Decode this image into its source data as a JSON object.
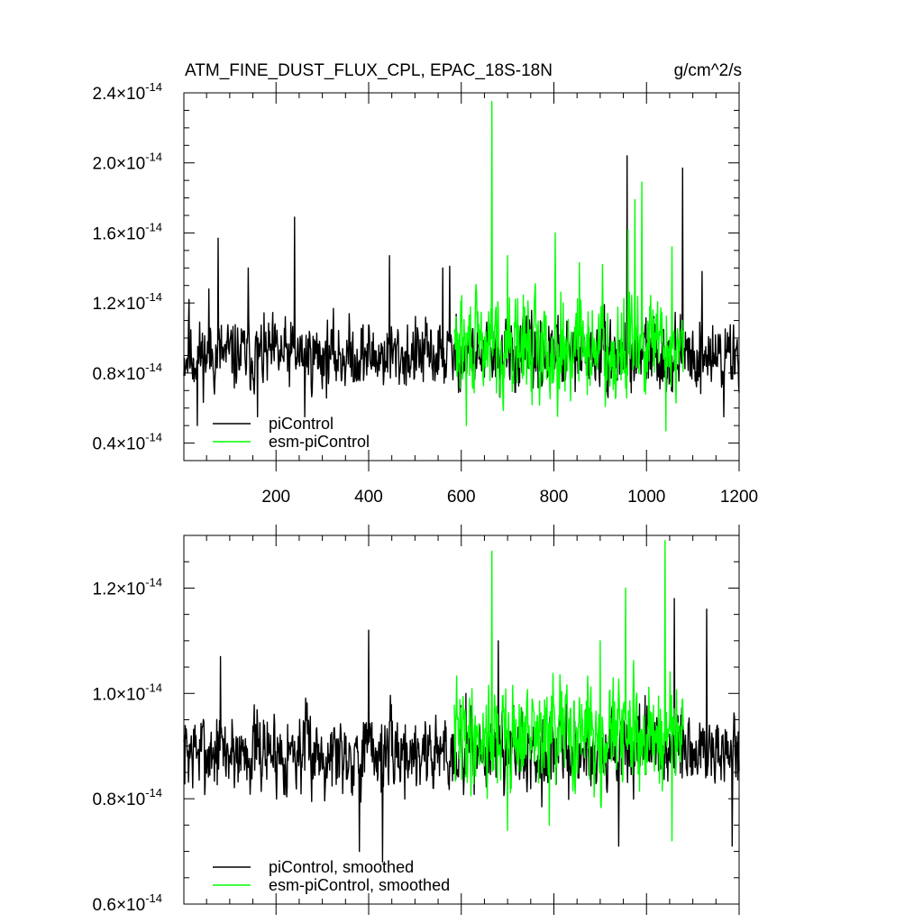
{
  "header": {
    "left": "ATM_FINE_DUST_FLUX_CPL, EPAC_18S-18N",
    "right": "g/cm^2/s"
  },
  "chart_data": [
    {
      "type": "line",
      "title": "ATM_FINE_DUST_FLUX_CPL, EPAC_18S-18N",
      "units": "g/cm^2/s",
      "xlim": [
        1,
        1200
      ],
      "ylim": [
        3e-15,
        2.4e-14
      ],
      "ytick_values": [
        4e-15,
        8e-15,
        1.2e-14,
        1.6e-14,
        2e-14,
        2.4e-14
      ],
      "ytick_labels": [
        {
          "mantissa": "0.4",
          "exp": "-14"
        },
        {
          "mantissa": "0.8",
          "exp": "-14"
        },
        {
          "mantissa": "1.2",
          "exp": "-14"
        },
        {
          "mantissa": "1.6",
          "exp": "-14"
        },
        {
          "mantissa": "2.0",
          "exp": "-14"
        },
        {
          "mantissa": "2.4",
          "exp": "-14"
        }
      ],
      "xtick_values": [
        200,
        400,
        600,
        800,
        1000,
        1200
      ],
      "xtick_labels": [
        "200",
        "400",
        "600",
        "800",
        "1000",
        "1200"
      ],
      "legend": {
        "placement": "bottom-left",
        "entries": [
          "piControl",
          "esm-piControl"
        ]
      },
      "series": [
        {
          "name": "piControl",
          "color": "#000000",
          "x_range": [
            1,
            1200
          ],
          "baseline": 9e-15,
          "noise": 1.4e-15,
          "seed": 11,
          "peaks": [
            [
              12,
              1.22e-14
            ],
            [
              30,
              5e-15
            ],
            [
              55,
              1.28e-14
            ],
            [
              75,
              1.57e-14
            ],
            [
              140,
              1.4e-14
            ],
            [
              160,
              5.5e-15
            ],
            [
              240,
              1.69e-14
            ],
            [
              262,
              5.5e-15
            ],
            [
              445,
              1.47e-14
            ],
            [
              560,
              1.4e-14
            ],
            [
              575,
              1.41e-14
            ],
            [
              958,
              2.04e-14
            ],
            [
              1078,
              1.97e-14
            ],
            [
              1120,
              1.38e-14
            ],
            [
              1167,
              5.5e-15
            ]
          ]
        },
        {
          "name": "esm-piControl",
          "color": "#00ff00",
          "x_range": [
            585,
            1080
          ],
          "baseline": 9.5e-15,
          "noise": 2e-15,
          "seed": 29,
          "peaks": [
            [
              666,
              2.35e-14
            ],
            [
              700,
              1.47e-14
            ],
            [
              803,
              1.6e-14
            ],
            [
              855,
              1.43e-14
            ],
            [
              905,
              1.42e-14
            ],
            [
              960,
              1.62e-14
            ],
            [
              975,
              1.79e-14
            ],
            [
              990,
              1.89e-14
            ],
            [
              1042,
              1.68e-14
            ],
            [
              1055,
              1.52e-14
            ],
            [
              611,
              5e-15
            ],
            [
              1042,
              4.7e-15
            ]
          ]
        }
      ]
    },
    {
      "type": "line",
      "xlim": [
        1,
        1200
      ],
      "ylim": [
        6e-15,
        1.3e-14
      ],
      "ytick_values": [
        6e-15,
        8e-15,
        1e-14,
        1.2e-14
      ],
      "ytick_labels": [
        {
          "mantissa": "0.6",
          "exp": "-14"
        },
        {
          "mantissa": "0.8",
          "exp": "-14"
        },
        {
          "mantissa": "1.0",
          "exp": "-14"
        },
        {
          "mantissa": "1.2",
          "exp": "-14"
        }
      ],
      "xtick_values": [
        200,
        400,
        600,
        800,
        1000,
        1200
      ],
      "legend": {
        "placement": "bottom-left",
        "entries": [
          "piControl, smoothed",
          "esm-piControl, smoothed"
        ]
      },
      "series": [
        {
          "name": "piControl, smoothed",
          "color": "#000000",
          "x_range": [
            1,
            1200
          ],
          "baseline": 8.9e-15,
          "noise": 5.5e-16,
          "seed": 7,
          "peaks": [
            [
              80,
              1.07e-14
            ],
            [
              400,
              1.12e-14
            ],
            [
              430,
              6.8e-15
            ],
            [
              380,
              7e-15
            ],
            [
              610,
              1e-14
            ],
            [
              680,
              1.1e-14
            ],
            [
              940,
              7.1e-15
            ],
            [
              1060,
              1.18e-14
            ],
            [
              1130,
              1.16e-14
            ],
            [
              1185,
              7.1e-15
            ]
          ]
        },
        {
          "name": "esm-piControl, smoothed",
          "color": "#00ff00",
          "x_range": [
            585,
            1080
          ],
          "baseline": 9.2e-15,
          "noise": 7e-16,
          "seed": 41,
          "peaks": [
            [
              666,
              1.27e-14
            ],
            [
              955,
              1.2e-14
            ],
            [
              1040,
              1.29e-14
            ],
            [
              1055,
              7.2e-15
            ],
            [
              700,
              7.4e-15
            ],
            [
              790,
              7.5e-15
            ],
            [
              900,
              1.1e-14
            ]
          ]
        }
      ]
    }
  ]
}
